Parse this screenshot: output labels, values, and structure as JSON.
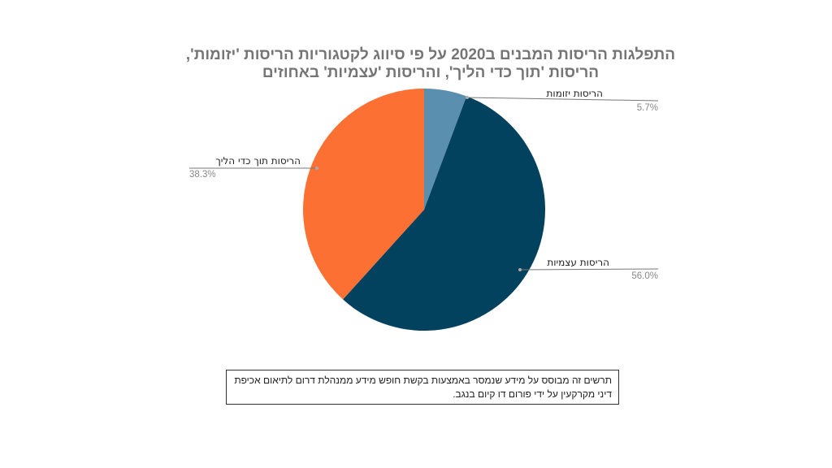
{
  "chart_data": {
    "type": "pie",
    "title_lines": [
      "התפלגות הריסות המבנים ב2020 על פי סיווג לקטגוריות הריסות 'יזומות',",
      "הריסות 'תוך כדי הליך', והריסות 'עצמיות' באחוזים"
    ],
    "slices": [
      {
        "label": "הריסות יזומות",
        "value": 5.7,
        "value_text": "5.7%",
        "color": "#5b8fb0"
      },
      {
        "label": "הריסות עצמיות",
        "value": 56.0,
        "value_text": "56.0%",
        "color": "#03425e"
      },
      {
        "label": "הריסות תוך כדי הליך",
        "value": 38.3,
        "value_text": "38.3%",
        "color": "#fc7034"
      }
    ],
    "start_angle_deg": 0,
    "direction": "clockwise",
    "legend": "none"
  },
  "note": {
    "text": "תרשים זה מבוסס על מידע שנמסר באמצעות בקשת חופש מידע ממנהלת דרום לתיאום אכיפת דיני מקרקעין על ידי פורום דו קיום בנגב."
  }
}
